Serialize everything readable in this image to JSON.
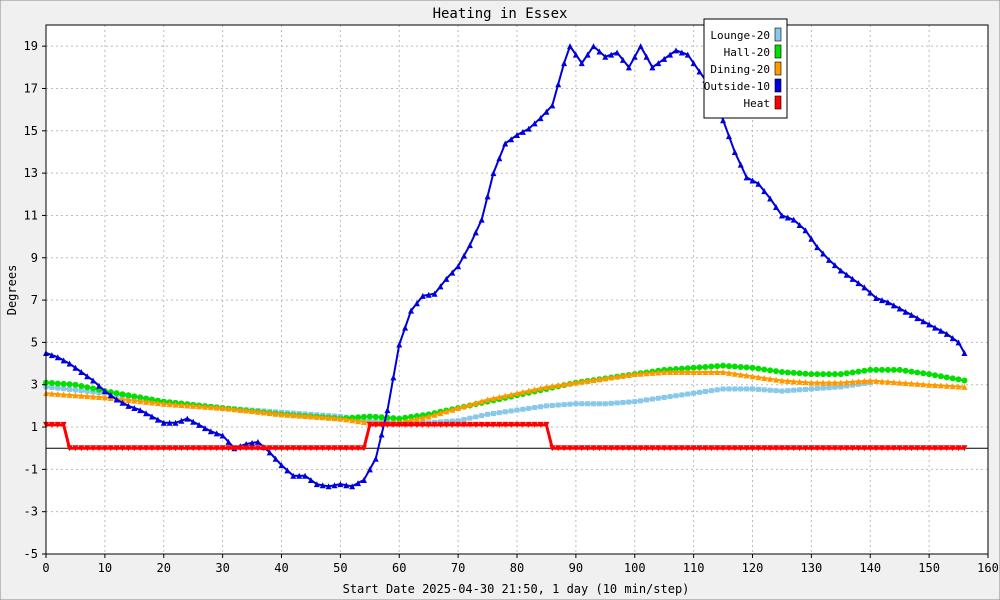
{
  "chart_data": {
    "type": "line",
    "title": "Heating in Essex",
    "xlabel": "Start Date 2025-04-30 21:50, 1 day (10 min/step)",
    "ylabel": "Degrees",
    "xlim": [
      0,
      160
    ],
    "ylim": [
      -5,
      20
    ],
    "x_ticks": [
      0,
      10,
      20,
      30,
      40,
      50,
      60,
      70,
      80,
      90,
      100,
      110,
      120,
      130,
      140,
      150,
      160
    ],
    "y_ticks": [
      -5,
      -3,
      -1,
      1,
      3,
      5,
      7,
      9,
      11,
      13,
      15,
      17,
      19
    ],
    "grid": true,
    "legend_position": "top-right",
    "zero_line": 0,
    "colors": {
      "background": "#f0f0f0",
      "plot_background": "#ffffff",
      "grid": "#bbbbbb"
    },
    "series": [
      {
        "name": "Lounge-20",
        "color": "#88c8e8",
        "marker": "square",
        "points": [
          [
            0,
            2.9
          ],
          [
            10,
            2.6
          ],
          [
            20,
            2.2
          ],
          [
            30,
            1.9
          ],
          [
            40,
            1.7
          ],
          [
            50,
            1.5
          ],
          [
            55,
            1.3
          ],
          [
            60,
            1.2
          ],
          [
            65,
            1.2
          ],
          [
            70,
            1.3
          ],
          [
            75,
            1.6
          ],
          [
            80,
            1.8
          ],
          [
            85,
            2.0
          ],
          [
            90,
            2.1
          ],
          [
            95,
            2.1
          ],
          [
            100,
            2.2
          ],
          [
            105,
            2.4
          ],
          [
            110,
            2.6
          ],
          [
            115,
            2.8
          ],
          [
            120,
            2.8
          ],
          [
            125,
            2.7
          ],
          [
            130,
            2.8
          ],
          [
            135,
            2.9
          ],
          [
            140,
            3.1
          ]
        ]
      },
      {
        "name": "Hall-20",
        "color": "#00e000",
        "marker": "circle",
        "points": [
          [
            0,
            3.1
          ],
          [
            5,
            3.0
          ],
          [
            10,
            2.7
          ],
          [
            20,
            2.2
          ],
          [
            30,
            1.9
          ],
          [
            40,
            1.6
          ],
          [
            50,
            1.4
          ],
          [
            55,
            1.5
          ],
          [
            60,
            1.4
          ],
          [
            65,
            1.6
          ],
          [
            70,
            1.9
          ],
          [
            75,
            2.2
          ],
          [
            80,
            2.5
          ],
          [
            85,
            2.8
          ],
          [
            90,
            3.1
          ],
          [
            95,
            3.3
          ],
          [
            100,
            3.5
          ],
          [
            105,
            3.7
          ],
          [
            110,
            3.8
          ],
          [
            115,
            3.9
          ],
          [
            120,
            3.8
          ],
          [
            125,
            3.6
          ],
          [
            130,
            3.5
          ],
          [
            135,
            3.5
          ],
          [
            140,
            3.7
          ],
          [
            145,
            3.7
          ],
          [
            150,
            3.5
          ],
          [
            156,
            3.2
          ]
        ]
      },
      {
        "name": "Dining-20",
        "color": "#ff9900",
        "marker": "triangle",
        "points": [
          [
            0,
            2.6
          ],
          [
            10,
            2.4
          ],
          [
            20,
            2.1
          ],
          [
            30,
            1.9
          ],
          [
            40,
            1.6
          ],
          [
            50,
            1.4
          ],
          [
            55,
            1.2
          ],
          [
            60,
            1.2
          ],
          [
            65,
            1.5
          ],
          [
            70,
            1.9
          ],
          [
            75,
            2.3
          ],
          [
            80,
            2.6
          ],
          [
            85,
            2.9
          ],
          [
            90,
            3.1
          ],
          [
            95,
            3.3
          ],
          [
            100,
            3.5
          ],
          [
            105,
            3.6
          ],
          [
            110,
            3.6
          ],
          [
            115,
            3.6
          ],
          [
            120,
            3.4
          ],
          [
            125,
            3.2
          ],
          [
            130,
            3.1
          ],
          [
            135,
            3.1
          ],
          [
            140,
            3.2
          ],
          [
            145,
            3.1
          ],
          [
            150,
            3.0
          ],
          [
            156,
            2.9
          ]
        ]
      },
      {
        "name": "Outside-10",
        "color": "#0000dd",
        "marker": "triangle",
        "points": [
          [
            0,
            4.5
          ],
          [
            2,
            4.3
          ],
          [
            4,
            4.0
          ],
          [
            6,
            3.6
          ],
          [
            8,
            3.2
          ],
          [
            10,
            2.7
          ],
          [
            12,
            2.3
          ],
          [
            14,
            2.0
          ],
          [
            16,
            1.8
          ],
          [
            18,
            1.5
          ],
          [
            20,
            1.2
          ],
          [
            22,
            1.2
          ],
          [
            24,
            1.4
          ],
          [
            26,
            1.1
          ],
          [
            28,
            0.8
          ],
          [
            30,
            0.6
          ],
          [
            32,
            0.0
          ],
          [
            34,
            0.2
          ],
          [
            36,
            0.3
          ],
          [
            38,
            -0.2
          ],
          [
            40,
            -0.8
          ],
          [
            42,
            -1.3
          ],
          [
            44,
            -1.3
          ],
          [
            46,
            -1.7
          ],
          [
            48,
            -1.8
          ],
          [
            50,
            -1.7
          ],
          [
            52,
            -1.8
          ],
          [
            54,
            -1.5
          ],
          [
            56,
            -0.5
          ],
          [
            58,
            1.8
          ],
          [
            60,
            4.9
          ],
          [
            62,
            6.5
          ],
          [
            64,
            7.2
          ],
          [
            66,
            7.3
          ],
          [
            68,
            8.0
          ],
          [
            70,
            8.6
          ],
          [
            72,
            9.6
          ],
          [
            74,
            10.8
          ],
          [
            76,
            13.0
          ],
          [
            78,
            14.4
          ],
          [
            80,
            14.8
          ],
          [
            82,
            15.1
          ],
          [
            84,
            15.6
          ],
          [
            86,
            16.2
          ],
          [
            88,
            18.2
          ],
          [
            89,
            19.0
          ],
          [
            91,
            18.2
          ],
          [
            93,
            19.0
          ],
          [
            95,
            18.5
          ],
          [
            97,
            18.7
          ],
          [
            99,
            18.0
          ],
          [
            101,
            19.0
          ],
          [
            103,
            18.0
          ],
          [
            105,
            18.4
          ],
          [
            107,
            18.8
          ],
          [
            109,
            18.6
          ],
          [
            111,
            17.8
          ],
          [
            113,
            17.0
          ],
          [
            115,
            15.5
          ],
          [
            117,
            14.0
          ],
          [
            119,
            12.8
          ],
          [
            121,
            12.5
          ],
          [
            123,
            11.8
          ],
          [
            125,
            11.0
          ],
          [
            127,
            10.8
          ],
          [
            129,
            10.3
          ],
          [
            131,
            9.5
          ],
          [
            133,
            8.9
          ],
          [
            135,
            8.4
          ],
          [
            137,
            8.0
          ],
          [
            139,
            7.6
          ],
          [
            141,
            7.1
          ],
          [
            143,
            6.9
          ],
          [
            145,
            6.6
          ],
          [
            147,
            6.3
          ],
          [
            149,
            6.0
          ],
          [
            151,
            5.7
          ],
          [
            153,
            5.4
          ],
          [
            155,
            5.0
          ],
          [
            156,
            4.5
          ]
        ]
      },
      {
        "name": "Heat",
        "color": "#ff0000",
        "marker": "triangle-down",
        "points": [
          [
            0,
            1.1
          ],
          [
            3,
            1.1
          ],
          [
            4,
            0.0
          ],
          [
            54,
            0.0
          ],
          [
            55,
            1.1
          ],
          [
            85,
            1.1
          ],
          [
            86,
            0.0
          ],
          [
            156,
            0.0
          ]
        ]
      }
    ]
  }
}
